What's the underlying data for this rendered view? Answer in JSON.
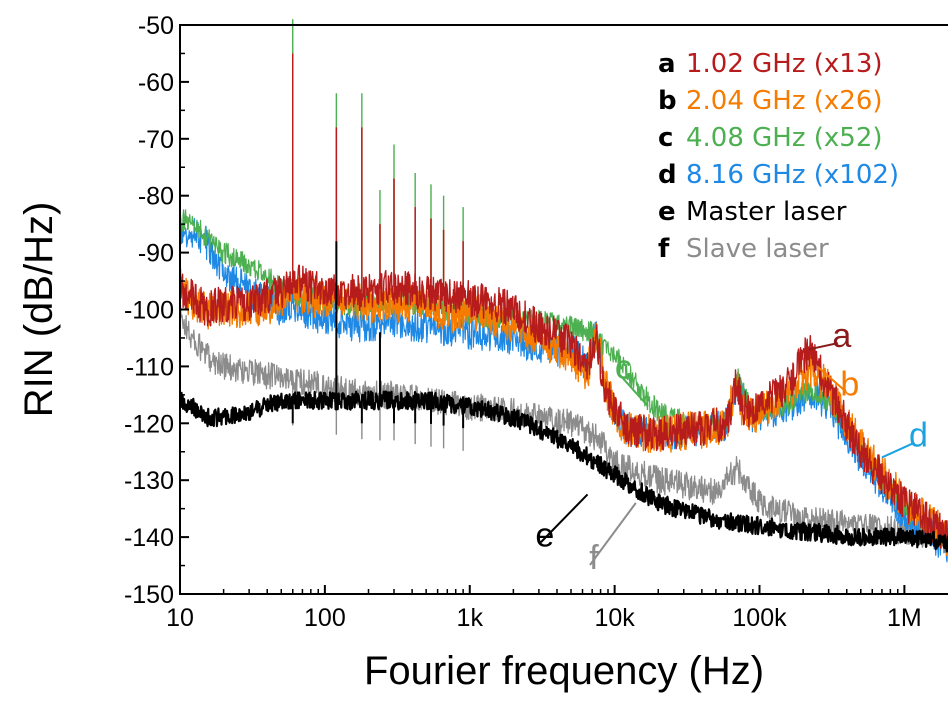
{
  "chart_data": {
    "type": "line",
    "xlabel": "Fourier frequency (Hz)",
    "ylabel": "RIN (dB/Hz)",
    "xscale": "log",
    "xlim": [
      10,
      2000000
    ],
    "ylim": [
      -150,
      -50
    ],
    "x_ticks": [
      {
        "value": 10,
        "label": "10"
      },
      {
        "value": 100,
        "label": "100"
      },
      {
        "value": 1000,
        "label": "1k"
      },
      {
        "value": 10000,
        "label": "10k"
      },
      {
        "value": 100000,
        "label": "100k"
      },
      {
        "value": 1000000,
        "label": "1M"
      }
    ],
    "y_ticks": [
      -50,
      -60,
      -70,
      -80,
      -90,
      -100,
      -110,
      -120,
      -130,
      -140,
      -150
    ],
    "grid": false,
    "legend_position": "top-right",
    "series": [
      {
        "key": "a",
        "name": "1.02 GHz (x13)",
        "color": "#b71c1c",
        "x": [
          10,
          15,
          20,
          30,
          50,
          60,
          80,
          120,
          180,
          300,
          500,
          800,
          1000,
          2000,
          3000,
          5000,
          6500,
          7500,
          8500,
          10000,
          12000,
          20000,
          40000,
          60000,
          70000,
          75000,
          90000,
          150000,
          220000,
          300000,
          500000,
          1000000,
          2000000
        ],
        "y": [
          -96,
          -100,
          -99,
          -99,
          -97,
          -95,
          -96,
          -97,
          -97,
          -96,
          -97,
          -98,
          -98,
          -100,
          -103,
          -106,
          -110,
          -105,
          -114,
          -117,
          -121,
          -122,
          -121,
          -120,
          -112,
          -117,
          -118,
          -114,
          -107,
          -114,
          -125,
          -134,
          -140
        ]
      },
      {
        "key": "b",
        "name": "2.04 GHz (x26)",
        "color": "#f57c00",
        "x": [
          10,
          15,
          20,
          30,
          50,
          60,
          80,
          120,
          180,
          300,
          500,
          800,
          1000,
          2000,
          3000,
          5000,
          6500,
          7500,
          8500,
          10000,
          12000,
          20000,
          40000,
          60000,
          70000,
          75000,
          90000,
          150000,
          230000,
          300000,
          500000,
          1000000,
          2000000
        ],
        "y": [
          -97,
          -100,
          -100,
          -100,
          -99,
          -97,
          -98,
          -98,
          -99,
          -99,
          -99,
          -101,
          -100,
          -103,
          -105,
          -108,
          -111,
          -104,
          -113,
          -118,
          -121,
          -122,
          -121,
          -120,
          -111,
          -118,
          -119,
          -115,
          -110,
          -114,
          -124,
          -134,
          -140
        ]
      },
      {
        "key": "c",
        "name": "4.08 GHz (x52)",
        "color": "#4caf50",
        "x": [
          10,
          12,
          15,
          20,
          30,
          50,
          60,
          80,
          120,
          180,
          300,
          500,
          1000,
          2000,
          3000,
          5000,
          7000,
          8000,
          10000,
          15000,
          20000,
          40000,
          60000,
          70000,
          90000,
          150000,
          230000,
          300000,
          500000,
          1000000,
          2000000
        ],
        "y": [
          -84,
          -85,
          -87,
          -90,
          -92,
          -96,
          -97,
          -98,
          -99,
          -99,
          -99,
          -99,
          -101,
          -102,
          -102,
          -103,
          -104,
          -106,
          -108,
          -114,
          -118,
          -121,
          -120,
          -112,
          -118,
          -117,
          -114,
          -116,
          -124,
          -135,
          -141
        ]
      },
      {
        "key": "d",
        "name": "8.16 GHz (x102)",
        "color": "#1e88e5",
        "x": [
          10,
          12,
          15,
          20,
          30,
          50,
          60,
          80,
          120,
          180,
          300,
          500,
          1000,
          2000,
          3000,
          5000,
          6500,
          7500,
          8500,
          10000,
          12000,
          20000,
          40000,
          60000,
          70000,
          90000,
          150000,
          230000,
          300000,
          500000,
          1000000,
          2000000
        ],
        "y": [
          -86,
          -86,
          -88,
          -93,
          -97,
          -100,
          -99,
          -101,
          -102,
          -103,
          -102,
          -103,
          -104,
          -105,
          -107,
          -107,
          -110,
          -104,
          -113,
          -118,
          -121,
          -122,
          -121,
          -120,
          -113,
          -119,
          -117,
          -115,
          -117,
          -126,
          -136,
          -142
        ]
      },
      {
        "key": "e",
        "name": "Master laser",
        "color": "#000000",
        "x": [
          10,
          12,
          15,
          20,
          30,
          50,
          80,
          120,
          200,
          300,
          500,
          1000,
          2000,
          3000,
          5000,
          10000,
          20000,
          50000,
          100000,
          200000,
          500000,
          1000000,
          2000000
        ],
        "y": [
          -116,
          -117,
          -119,
          -119,
          -118,
          -116,
          -116,
          -116,
          -116,
          -116,
          -116,
          -117,
          -119,
          -121,
          -124,
          -129,
          -134,
          -137,
          -138,
          -139,
          -140,
          -140,
          -141
        ]
      },
      {
        "key": "f",
        "name": "Slave laser",
        "color": "#8c8c8c",
        "x": [
          10,
          12,
          15,
          20,
          30,
          50,
          80,
          120,
          200,
          300,
          500,
          1000,
          2000,
          3000,
          5000,
          8000,
          10000,
          20000,
          50000,
          70000,
          100000,
          200000,
          500000,
          1000000,
          2000000
        ],
        "y": [
          -101,
          -105,
          -108,
          -110,
          -111,
          -112,
          -113,
          -114,
          -115,
          -115,
          -116,
          -117,
          -118,
          -119,
          -120,
          -123,
          -127,
          -130,
          -132,
          -128,
          -134,
          -137,
          -138,
          -139,
          -140
        ]
      }
    ],
    "spikes": [
      {
        "x": 60,
        "top": -55
      },
      {
        "x": 120,
        "top": -68
      },
      {
        "x": 180,
        "top": -68
      },
      {
        "x": 240,
        "top": -85
      },
      {
        "x": 300,
        "top": -77
      },
      {
        "x": 420,
        "top": -82
      },
      {
        "x": 540,
        "top": -84
      },
      {
        "x": 660,
        "top": -86
      },
      {
        "x": 900,
        "top": -88
      }
    ],
    "annotations": [
      {
        "label": "a",
        "color": "#8b1a1a",
        "text_x": 370000,
        "text_y": -104.5,
        "tip_x": 220000,
        "tip_y": -107
      },
      {
        "label": "b",
        "color": "#f57c00",
        "text_x": 420000,
        "text_y": -113,
        "tip_x": 250000,
        "tip_y": -110
      },
      {
        "label": "c",
        "color": "#4caf50",
        "text_x": 11500,
        "text_y": -110,
        "tip_x": 17000,
        "tip_y": -117
      },
      {
        "label": "d",
        "color": "#1ba3e0",
        "text_x": 1250000,
        "text_y": -122,
        "tip_x": 700000,
        "tip_y": -126
      },
      {
        "label": "e",
        "color": "#000000",
        "text_x": 3300,
        "text_y": -139.5,
        "tip_x": 6500,
        "tip_y": -132.5
      },
      {
        "label": "f",
        "color": "#8c8c8c",
        "text_x": 7200,
        "text_y": -143.5,
        "tip_x": 14000,
        "tip_y": -134
      }
    ]
  }
}
